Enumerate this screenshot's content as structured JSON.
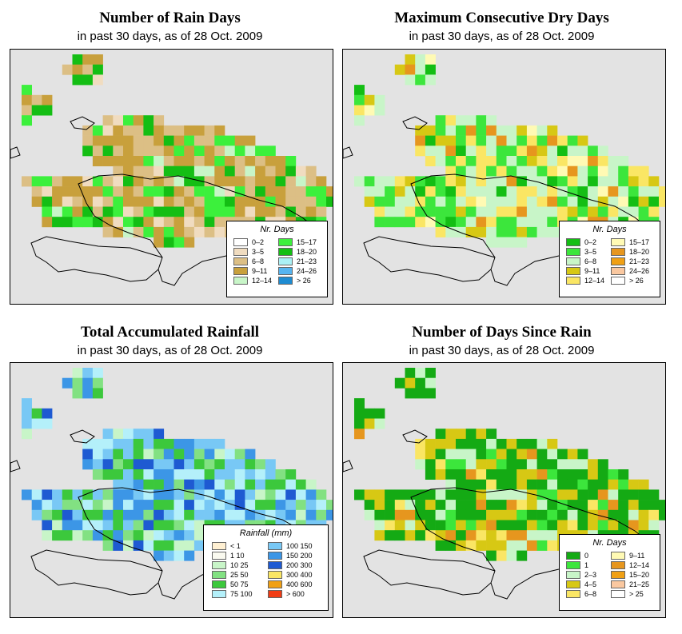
{
  "panels": [
    {
      "title": "Number of Rain Days",
      "subtitle": "in past 30 days, as of  28 Oct. 2009",
      "legend": {
        "title": "Nr. Days",
        "items": [
          {
            "label": "0–2",
            "color": "#ffffff"
          },
          {
            "label": "3–5",
            "color": "#f0dcc0"
          },
          {
            "label": "6–8",
            "color": "#dcbf85"
          },
          {
            "label": "9–11",
            "color": "#c8a03c"
          },
          {
            "label": "12–14",
            "color": "#c8f5c8"
          },
          {
            "label": "15–17",
            "color": "#3cf03c"
          },
          {
            "label": "18–20",
            "color": "#14be14"
          },
          {
            "label": "21–23",
            "color": "#aaf0f5"
          },
          {
            "label": "24–26",
            "color": "#55b4f0"
          },
          {
            "label": "> 26",
            "color": "#1e8cd2"
          }
        ]
      }
    },
    {
      "title": "Maximum Consecutive Dry Days",
      "subtitle": "in past 30 days, as of  28 Oct. 2009",
      "legend": {
        "title": "Nr. Days",
        "items": [
          {
            "label": "0–2",
            "color": "#14be14"
          },
          {
            "label": "3–5",
            "color": "#3ce63c"
          },
          {
            "label": "6–8",
            "color": "#c8f5c8"
          },
          {
            "label": "9–11",
            "color": "#d7c814"
          },
          {
            "label": "12–14",
            "color": "#fae664"
          },
          {
            "label": "15–17",
            "color": "#fffab4"
          },
          {
            "label": "18–20",
            "color": "#e6961e"
          },
          {
            "label": "21–23",
            "color": "#f0a014"
          },
          {
            "label": "24–26",
            "color": "#fac8a0"
          },
          {
            "label": "> 26",
            "color": "#ffffff"
          }
        ]
      }
    },
    {
      "title": "Total Accumulated Rainfall",
      "subtitle": "in past 30 days, as of  28 Oct. 2009",
      "legend": {
        "title": "Rainfall (mm)",
        "items": [
          {
            "label": "< 1",
            "color": "#fff0d2"
          },
          {
            "label": "1    10",
            "color": "#fafaf0"
          },
          {
            "label": "10    25",
            "color": "#c8f5c8"
          },
          {
            "label": "25    50",
            "color": "#82e182"
          },
          {
            "label": "50    75",
            "color": "#3cc83c"
          },
          {
            "label": "75  100",
            "color": "#b4f0fa"
          },
          {
            "label": "100  150",
            "color": "#78c8f5"
          },
          {
            "label": "150  200",
            "color": "#3c96e6"
          },
          {
            "label": "200  300",
            "color": "#1e5ad2"
          },
          {
            "label": "300  400",
            "color": "#fae664"
          },
          {
            "label": "400  600",
            "color": "#f0a014"
          },
          {
            "label": "> 600",
            "color": "#f03c14"
          }
        ]
      }
    },
    {
      "title": "Number of Days Since Rain",
      "subtitle": "in past 30 days, as of  28 Oct. 2009",
      "legend": {
        "title": "Nr. Days",
        "items": [
          {
            "label": "0",
            "color": "#14aa14"
          },
          {
            "label": "1",
            "color": "#3ce63c"
          },
          {
            "label": "2–3",
            "color": "#c8f5c8"
          },
          {
            "label": "4–5",
            "color": "#d7c814"
          },
          {
            "label": "6–8",
            "color": "#fae664"
          },
          {
            "label": "9–11",
            "color": "#fffab4"
          },
          {
            "label": "12–14",
            "color": "#e6961e"
          },
          {
            "label": "15–20",
            "color": "#f0a014"
          },
          {
            "label": "21–25",
            "color": "#fac8a0"
          },
          {
            "label": "> 25",
            "color": "#ffffff"
          }
        ]
      }
    }
  ]
}
